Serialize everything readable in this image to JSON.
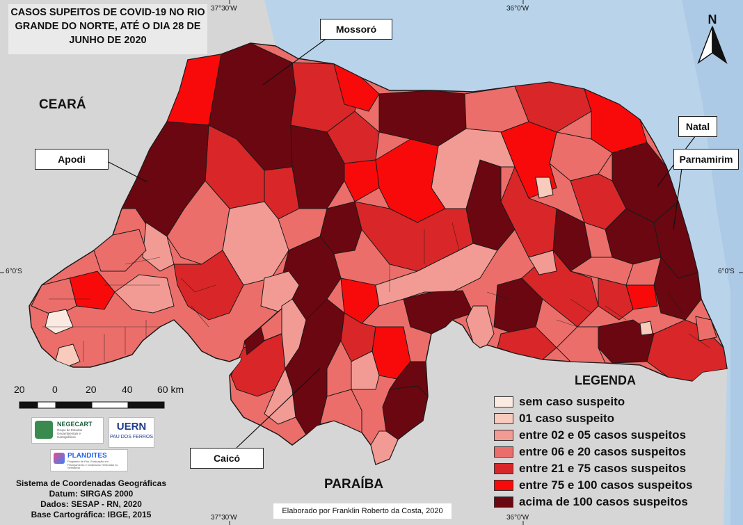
{
  "title": "CASOS SUPEITOS DE COVID-19 NO RIO GRANDE DO NORTE, ATÉ O DIA 28 DE JUNHO DE 2020",
  "callouts": {
    "mossoro": "Mossoró",
    "apodi": "Apodi",
    "natal": "Natal",
    "parnamirim": "Parnamirim",
    "caico": "Caicó"
  },
  "regions": {
    "ceara": "CEARÁ",
    "paraiba": "PARAÍBA"
  },
  "north_arrow": "N",
  "coordinates": {
    "top_left": "37°30'W",
    "top_right": "36°0'W",
    "bottom_left": "37°30'W",
    "bottom_right": "36°0'W",
    "left_lat": "6°0'S",
    "right_lat": "6°0'S"
  },
  "scale": {
    "labels": [
      "20",
      "0",
      "20",
      "40",
      "60 km"
    ]
  },
  "legend": {
    "title": "LEGENDA",
    "items": [
      {
        "label": "sem caso suspeito",
        "color": "#fbeae2"
      },
      {
        "label": "01 caso suspeito",
        "color": "#f8cbbd"
      },
      {
        "label": "entre 02 e 05 casos suspeitos",
        "color": "#f29b95"
      },
      {
        "label": "entre 06 e 20 casos suspeitos",
        "color": "#ec6e6a"
      },
      {
        "label": "entre 21 e 75 casos suspeitos",
        "color": "#d92628"
      },
      {
        "label": "entre 75 e 100 casos suspeitos",
        "color": "#f80a0a"
      },
      {
        "label": "acima de 100 casos suspeitos",
        "color": "#6b0710"
      }
    ]
  },
  "logos": {
    "negecart": "NEGECART",
    "negecart_sub": "Grupo de Estudos Geoambientais e Cartográficos",
    "uern": "UERN",
    "uern_sub": "PAU DOS FERROS",
    "plandites": "PLANDITES",
    "plandites_sub": "Programa de Pós-Graduação em Planejamento e Dinâmicas Territoriais no Semiárido"
  },
  "footer": {
    "line1": "Sistema de Coordenadas Geográficas",
    "line2": "Datum: SIRGAS 2000",
    "line3": "Dados: SESAP - RN, 2020",
    "line4": "Base Cartográfica: IBGE, 2015"
  },
  "credit": "Elaborado por Franklin Roberto da Costa, 2020",
  "colors": {
    "land": "#d6d6d6",
    "sea": "#b9d4ea",
    "border": "#1a1a1a"
  }
}
